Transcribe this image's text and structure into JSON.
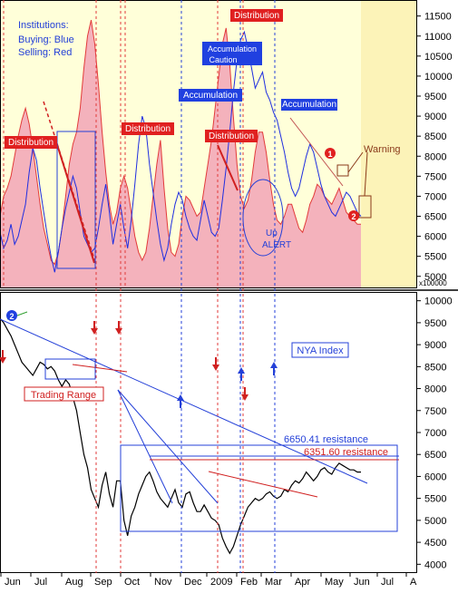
{
  "chart_data": [
    {
      "type": "area",
      "panel": "institutions",
      "legend_lines": [
        "Institutions:",
        "Buying: Blue",
        "Selling: Red"
      ],
      "y_ticks": [
        5000,
        5500,
        6000,
        6500,
        7000,
        7500,
        8000,
        8500,
        9000,
        9500,
        10000,
        10500,
        11000,
        11500
      ],
      "ylim": [
        4700,
        11900
      ],
      "y_multiplier_label": "x100000",
      "series": [
        {
          "name": "Selling: Red",
          "style": "area",
          "x": [
            0,
            1,
            2,
            3,
            4,
            5,
            6,
            7,
            8,
            9,
            10,
            11,
            12,
            13,
            14,
            15,
            16,
            17,
            18,
            19,
            20,
            21,
            22,
            23,
            24,
            25,
            26,
            27,
            28,
            29,
            30,
            31,
            32,
            33,
            34,
            35,
            36,
            37,
            38,
            39,
            40,
            41,
            42,
            43,
            44,
            45,
            46,
            47,
            48,
            49,
            50,
            51,
            52,
            53,
            54,
            55,
            56,
            57,
            58,
            59,
            60,
            61,
            62,
            63,
            64,
            65,
            66,
            67,
            68,
            69,
            70,
            71,
            72,
            73,
            74,
            75,
            76,
            77,
            78,
            79,
            80,
            81,
            82,
            83,
            84,
            85,
            86,
            87,
            88,
            89,
            90,
            91,
            92,
            93,
            94,
            95,
            96,
            97,
            98,
            99
          ],
          "values": [
            6500,
            7000,
            7200,
            7500,
            8000,
            8500,
            8900,
            9200,
            8800,
            8200,
            7500,
            6800,
            6200,
            5800,
            5400,
            5300,
            5600,
            6200,
            7000,
            7800,
            8300,
            8600,
            9200,
            10200,
            11000,
            11400,
            10800,
            9800,
            8600,
            7600,
            6800,
            6300,
            6600,
            7200,
            7500,
            7200,
            6600,
            6000,
            5600,
            5400,
            5600,
            6200,
            7000,
            7800,
            8400,
            7200,
            6200,
            5600,
            5500,
            5800,
            6500,
            7000,
            6900,
            6700,
            6500,
            6600,
            7200,
            7800,
            8400,
            9200,
            10000,
            10800,
            11200,
            10300,
            9000,
            7800,
            7000,
            6700,
            6900,
            7400,
            8100,
            8600,
            8600,
            8100,
            7400,
            6800,
            6400,
            6300,
            6500,
            6800,
            6800,
            6500,
            6200,
            6100,
            6400,
            6800,
            7000,
            7300,
            7200,
            7000,
            6900,
            6800,
            7000,
            7200,
            6900,
            6600,
            6500,
            6400,
            6300,
            6300
          ]
        },
        {
          "name": "Buying: Blue",
          "style": "line",
          "x": [
            0,
            1,
            2,
            3,
            4,
            5,
            6,
            7,
            8,
            9,
            10,
            11,
            12,
            13,
            14,
            15,
            16,
            17,
            18,
            19,
            20,
            21,
            22,
            23,
            24,
            25,
            26,
            27,
            28,
            29,
            30,
            31,
            32,
            33,
            34,
            35,
            36,
            37,
            38,
            39,
            40,
            41,
            42,
            43,
            44,
            45,
            46,
            47,
            48,
            49,
            50,
            51,
            52,
            53,
            54,
            55,
            56,
            57,
            58,
            59,
            60,
            61,
            62,
            63,
            64,
            65,
            66,
            67,
            68,
            69,
            70,
            71,
            72,
            73,
            74,
            75,
            76,
            77,
            78,
            79,
            80,
            81,
            82,
            83,
            84,
            85,
            86,
            87,
            88,
            89,
            90,
            91,
            92,
            93,
            94,
            95,
            96,
            97,
            98,
            99
          ],
          "values": [
            6100,
            5700,
            5900,
            6300,
            5800,
            6000,
            6400,
            6800,
            7600,
            8200,
            7900,
            7200,
            6600,
            6000,
            5500,
            5100,
            5600,
            6200,
            6700,
            7100,
            7500,
            7200,
            6600,
            6000,
            5800,
            5600,
            5700,
            6200,
            6800,
            7300,
            6600,
            5800,
            6300,
            6800,
            6200,
            5700,
            6400,
            7300,
            8300,
            9000,
            8700,
            7800,
            7100,
            6400,
            5800,
            5400,
            5700,
            6300,
            6800,
            7100,
            6900,
            6500,
            6200,
            6000,
            5900,
            6400,
            6900,
            6500,
            6100,
            6000,
            6200,
            6900,
            7700,
            8600,
            9600,
            10400,
            10900,
            11100,
            10700,
            10200,
            9700,
            9900,
            10100,
            9600,
            9400,
            9100,
            8900,
            8500,
            8100,
            7600,
            7200,
            7000,
            7200,
            7600,
            8000,
            8300,
            8100,
            7700,
            7300,
            7000,
            6800,
            6600,
            6500,
            6700,
            6900,
            7100,
            7000,
            6800,
            6600,
            6500
          ]
        }
      ],
      "annotations": [
        {
          "text": "Distribution",
          "kind": "red-box"
        },
        {
          "text": "Distribution",
          "kind": "red-box"
        },
        {
          "text": "Distribution",
          "kind": "red-box"
        },
        {
          "text": "Distribution",
          "kind": "red-box"
        },
        {
          "text": "Accumulation",
          "kind": "blue-box"
        },
        {
          "text": "Accumulation",
          "kind": "blue-box"
        },
        {
          "text": "Accumulation Caution",
          "kind": "blue-box"
        },
        {
          "text": "Up",
          "kind": "blue-text"
        },
        {
          "text": "ALERT",
          "kind": "blue-text"
        },
        {
          "text": "Warning",
          "kind": "brown-text"
        },
        {
          "text": "1",
          "kind": "red-circle"
        },
        {
          "text": "2",
          "kind": "red-circle"
        }
      ]
    },
    {
      "type": "line",
      "panel": "nya",
      "title": "NYA Index",
      "y_ticks": [
        4000,
        4500,
        5000,
        5500,
        6000,
        6500,
        7000,
        7500,
        8000,
        8500,
        9000,
        9500,
        10000
      ],
      "ylim": [
        3800,
        10200
      ],
      "x_ticks": [
        "Jun",
        "Jul",
        "Aug",
        "Sep",
        "Oct",
        "Nov",
        "Dec",
        "2009",
        "Feb",
        "Mar",
        "Apr",
        "May",
        "Jun",
        "Jul",
        "A"
      ],
      "series": [
        {
          "name": "NYA Index",
          "x": [
            0,
            1,
            2,
            3,
            4,
            5,
            6,
            7,
            8,
            9,
            10,
            11,
            12,
            13,
            14,
            15,
            16,
            17,
            18,
            19,
            20,
            21,
            22,
            23,
            24,
            25,
            26,
            27,
            28,
            29,
            30,
            31,
            32,
            33,
            34,
            35,
            36,
            37,
            38,
            39,
            40,
            41,
            42,
            43,
            44,
            45,
            46,
            47,
            48,
            49,
            50,
            51,
            52,
            53,
            54,
            55,
            56,
            57,
            58,
            59,
            60,
            61,
            62,
            63,
            64,
            65,
            66,
            67,
            68,
            69,
            70,
            71,
            72,
            73,
            74,
            75,
            76,
            77,
            78,
            79,
            80,
            81,
            82,
            83,
            84,
            85,
            86,
            87,
            88,
            89,
            90,
            91,
            92,
            93,
            94,
            95,
            96,
            97,
            98,
            99
          ],
          "values": [
            9600,
            9500,
            9350,
            9200,
            9000,
            8800,
            8600,
            8500,
            8400,
            8300,
            8450,
            8600,
            8550,
            8450,
            8500,
            8400,
            8200,
            8050,
            8200,
            8100,
            7800,
            7500,
            7000,
            6500,
            6200,
            5700,
            5500,
            5300,
            5800,
            6100,
            5600,
            5300,
            5900,
            5900,
            5000,
            4650,
            5100,
            5300,
            5600,
            5800,
            6000,
            6100,
            5900,
            5650,
            5500,
            5400,
            5300,
            5500,
            5700,
            5400,
            5300,
            5600,
            5650,
            5400,
            5200,
            5200,
            5350,
            5200,
            5050,
            5000,
            4900,
            4600,
            4400,
            4250,
            4400,
            4650,
            4900,
            5100,
            5300,
            5400,
            5500,
            5450,
            5500,
            5600,
            5650,
            5550,
            5500,
            5550,
            5700,
            5650,
            5800,
            5900,
            5850,
            5950,
            6100,
            6000,
            5900,
            6000,
            6150,
            6200,
            6100,
            6050,
            6200,
            6300,
            6250,
            6200,
            6150,
            6150,
            6100,
            6100
          ]
        }
      ],
      "annotations": [
        {
          "text": "Trading Range",
          "kind": "red-box"
        },
        {
          "text": "6650.41 resistance",
          "kind": "blue-text"
        },
        {
          "text": "6351.60 resistance",
          "kind": "red-text"
        },
        {
          "text": "2",
          "kind": "blue-circle"
        }
      ]
    }
  ]
}
